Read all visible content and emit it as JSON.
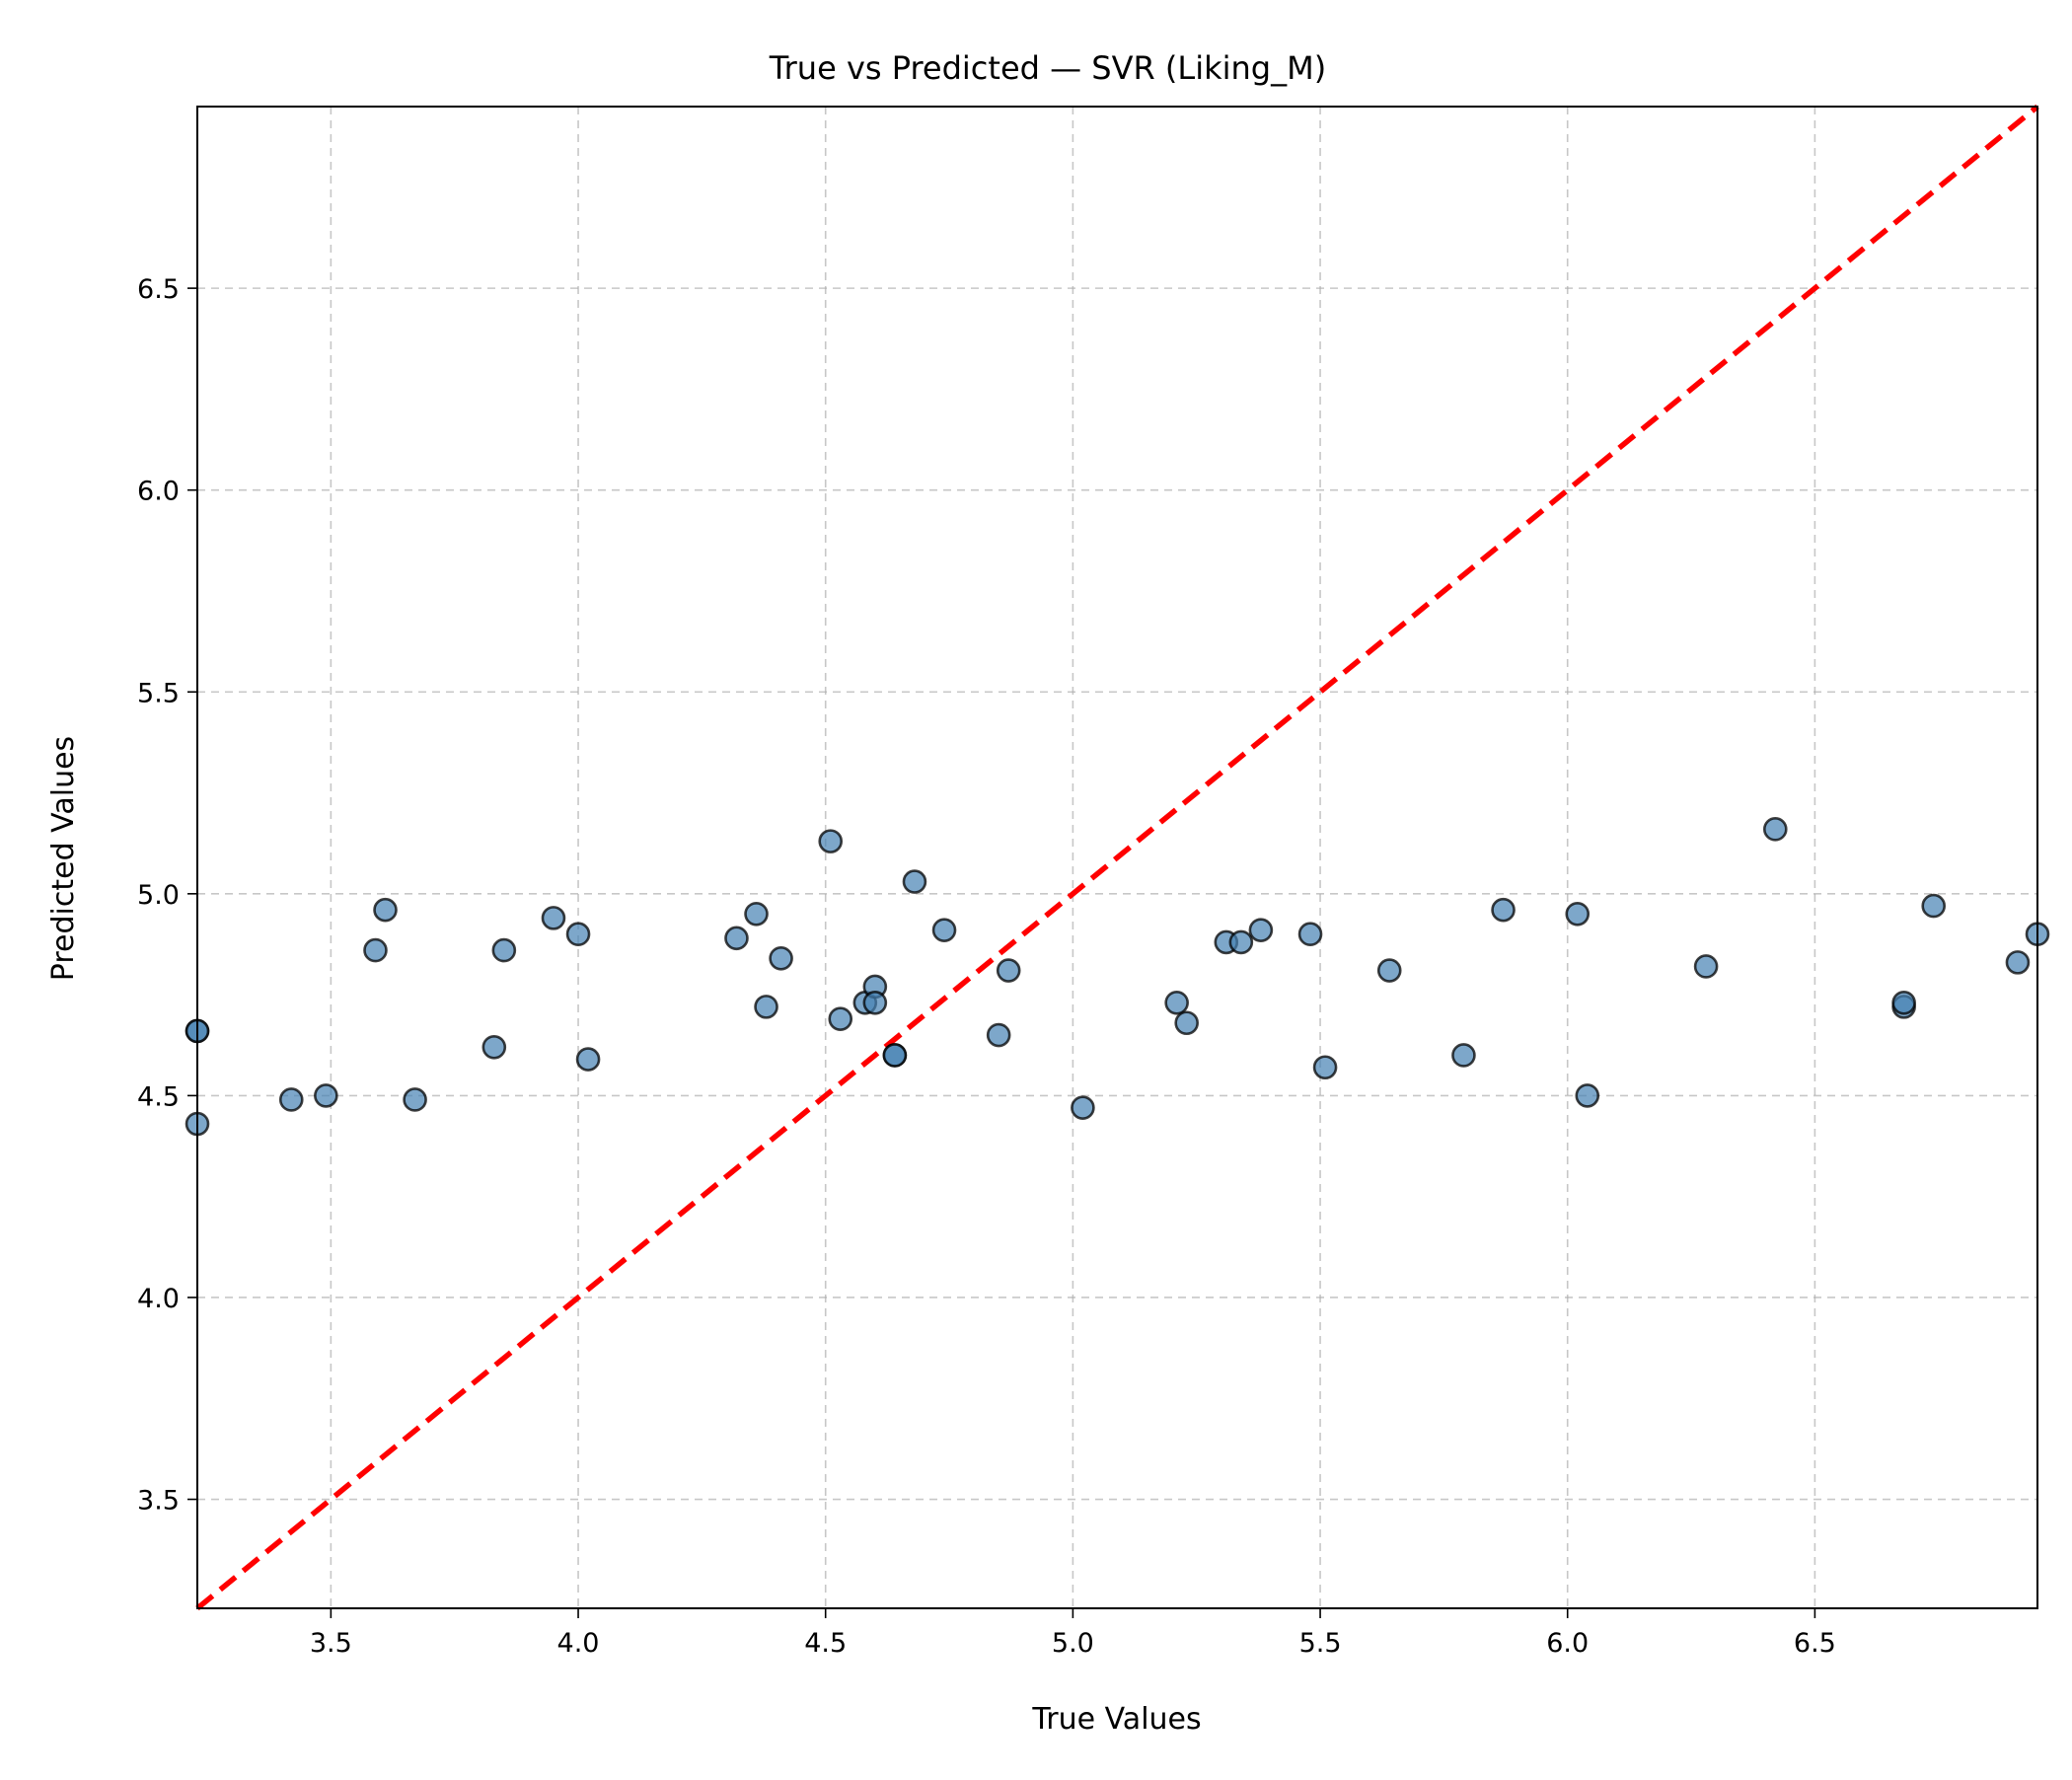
{
  "chart_data": {
    "type": "scatter",
    "title": "True vs Predicted — SVR (Liking_M)",
    "xlabel": "True Values",
    "ylabel": "Predicted Values",
    "xlim": [
      3.23,
      6.95
    ],
    "ylim": [
      3.23,
      6.95
    ],
    "xticks": [
      "3.5",
      "4.0",
      "4.5",
      "5.0",
      "5.5",
      "6.0",
      "6.5"
    ],
    "yticks": [
      "3.5",
      "4.0",
      "4.5",
      "5.0",
      "5.5",
      "6.0",
      "6.5"
    ],
    "grid": true,
    "point_color": "#4682b4",
    "reference_line": {
      "style": "dashed",
      "color": "#ff0000",
      "from": [
        3.23,
        3.23
      ],
      "to": [
        6.95,
        6.95
      ]
    },
    "points": [
      {
        "x": 3.23,
        "y": 4.66
      },
      {
        "x": 3.23,
        "y": 4.66
      },
      {
        "x": 3.23,
        "y": 4.43
      },
      {
        "x": 3.42,
        "y": 4.49
      },
      {
        "x": 3.49,
        "y": 4.5
      },
      {
        "x": 3.59,
        "y": 4.86
      },
      {
        "x": 3.61,
        "y": 4.96
      },
      {
        "x": 3.67,
        "y": 4.49
      },
      {
        "x": 3.83,
        "y": 4.62
      },
      {
        "x": 3.85,
        "y": 4.86
      },
      {
        "x": 3.95,
        "y": 4.94
      },
      {
        "x": 4.0,
        "y": 4.9
      },
      {
        "x": 4.02,
        "y": 4.59
      },
      {
        "x": 4.32,
        "y": 4.89
      },
      {
        "x": 4.36,
        "y": 4.95
      },
      {
        "x": 4.38,
        "y": 4.72
      },
      {
        "x": 4.41,
        "y": 4.84
      },
      {
        "x": 4.51,
        "y": 5.13
      },
      {
        "x": 4.53,
        "y": 4.69
      },
      {
        "x": 4.58,
        "y": 4.73
      },
      {
        "x": 4.6,
        "y": 4.77
      },
      {
        "x": 4.6,
        "y": 4.73
      },
      {
        "x": 4.64,
        "y": 4.6
      },
      {
        "x": 4.64,
        "y": 4.6
      },
      {
        "x": 4.68,
        "y": 5.03
      },
      {
        "x": 4.74,
        "y": 4.91
      },
      {
        "x": 4.85,
        "y": 4.65
      },
      {
        "x": 4.87,
        "y": 4.81
      },
      {
        "x": 5.02,
        "y": 4.47
      },
      {
        "x": 5.21,
        "y": 4.73
      },
      {
        "x": 5.23,
        "y": 4.68
      },
      {
        "x": 5.31,
        "y": 4.88
      },
      {
        "x": 5.34,
        "y": 4.88
      },
      {
        "x": 5.38,
        "y": 4.91
      },
      {
        "x": 5.48,
        "y": 4.9
      },
      {
        "x": 5.51,
        "y": 4.57
      },
      {
        "x": 5.64,
        "y": 4.81
      },
      {
        "x": 5.79,
        "y": 4.6
      },
      {
        "x": 5.87,
        "y": 4.96
      },
      {
        "x": 6.02,
        "y": 4.95
      },
      {
        "x": 6.04,
        "y": 4.5
      },
      {
        "x": 6.28,
        "y": 4.82
      },
      {
        "x": 6.42,
        "y": 5.16
      },
      {
        "x": 6.68,
        "y": 4.72
      },
      {
        "x": 6.68,
        "y": 4.73
      },
      {
        "x": 6.74,
        "y": 4.97
      },
      {
        "x": 6.91,
        "y": 4.83
      },
      {
        "x": 6.95,
        "y": 4.9
      }
    ]
  }
}
